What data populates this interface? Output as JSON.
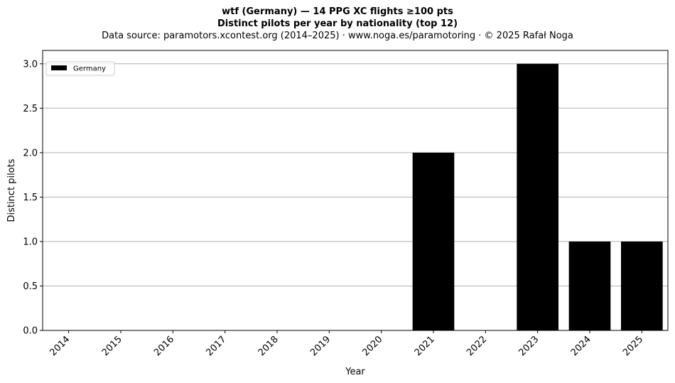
{
  "chart_data": {
    "type": "bar",
    "title": "wtf (Germany)  —  14 PPG XC flights ≥100 pts",
    "subtitle": "Distinct pilots per year by nationality (top 12)",
    "source": "Data source: paramotors.xcontest.org (2014–2025)  ·  www.noga.es/paramotoring  ·  © 2025 Rafał Noga",
    "xlabel": "Year",
    "ylabel": "Distinct pilots",
    "categories": [
      "2014",
      "2015",
      "2016",
      "2017",
      "2018",
      "2019",
      "2020",
      "2021",
      "2022",
      "2023",
      "2024",
      "2025"
    ],
    "series": [
      {
        "name": "Germany",
        "color": "#000000",
        "values": [
          0,
          0,
          0,
          0,
          0,
          0,
          0,
          2,
          0,
          3,
          1,
          1
        ]
      }
    ],
    "ylim": [
      0,
      3.15
    ],
    "yticks": [
      0.0,
      0.5,
      1.0,
      1.5,
      2.0,
      2.5,
      3.0
    ],
    "ytick_labels": [
      "0.0",
      "0.5",
      "1.0",
      "1.5",
      "2.0",
      "2.5",
      "3.0"
    ],
    "grid": "y",
    "legend": "top-left"
  }
}
